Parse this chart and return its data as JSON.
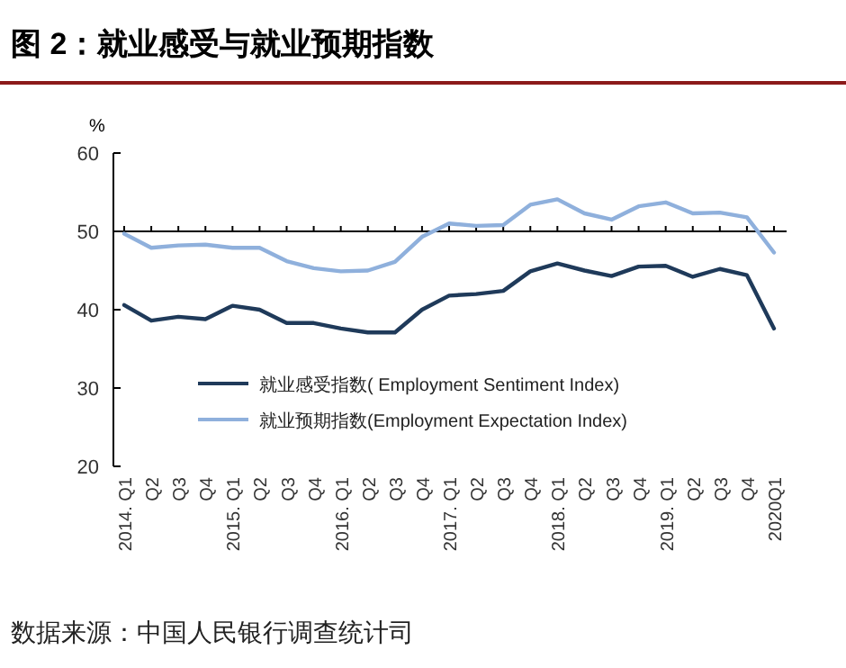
{
  "chart_data": {
    "type": "line",
    "title": "图 2：就业感受与就业预期指数",
    "ylabel": "%",
    "categories": [
      "2014. Q1",
      "Q2",
      "Q3",
      "Q4",
      "2015. Q1",
      "Q2",
      "Q3",
      "Q4",
      "2016. Q1",
      "Q2",
      "Q3",
      "Q4",
      "2017. Q1",
      "Q2",
      "Q3",
      "Q4",
      "2018. Q1",
      "Q2",
      "Q3",
      "Q4",
      "2019. Q1",
      "Q2",
      "Q3",
      "Q4",
      "2020Q1"
    ],
    "series": [
      {
        "name": "就业感受指数( Employment Sentiment Index)",
        "color": "#1f3a5a",
        "values": [
          40.6,
          38.6,
          39.1,
          38.8,
          40.5,
          40.0,
          38.3,
          38.3,
          37.6,
          37.1,
          37.1,
          40.0,
          41.8,
          42.0,
          42.4,
          44.9,
          45.9,
          45.0,
          44.3,
          45.5,
          45.6,
          44.2,
          45.2,
          44.4,
          37.6
        ]
      },
      {
        "name": "就业预期指数(Employment Expectation Index)",
        "color": "#8fb0dc",
        "values": [
          49.7,
          47.9,
          48.2,
          48.3,
          47.9,
          47.9,
          46.2,
          45.3,
          44.9,
          45.0,
          46.1,
          49.3,
          51.0,
          50.7,
          50.8,
          53.4,
          54.1,
          52.3,
          51.5,
          53.2,
          53.7,
          52.3,
          52.4,
          51.8,
          47.3
        ]
      }
    ],
    "ylim": [
      20,
      60
    ],
    "yticks": [
      20,
      30,
      40,
      50,
      60
    ],
    "grid": false,
    "legend": "bottom",
    "ref_lines": [
      {
        "axis": "y",
        "value": 50,
        "color": "#000000"
      }
    ],
    "annotations": [
      "数据来源：中国人民银行调查统计司"
    ]
  }
}
